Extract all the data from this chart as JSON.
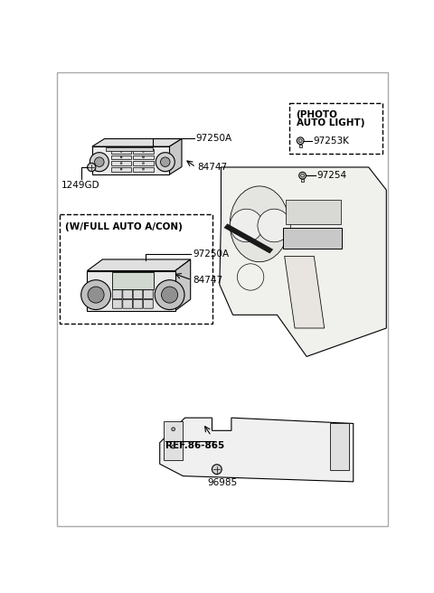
{
  "bg_color": "#ffffff",
  "line_color": "#000000",
  "labels": {
    "97250A_top": "97250A",
    "84747_top": "84747",
    "1249GD": "1249GD",
    "w_full": "(W/FULL AUTO A/CON)",
    "97250A_box": "97250A",
    "84747_box": "84747",
    "photo_title": "(PHOTO",
    "photo_title2": "AUTO LIGHT)",
    "97253K": "97253K",
    "97254": "97254",
    "ref": "REF.86-865",
    "96985": "96985"
  }
}
